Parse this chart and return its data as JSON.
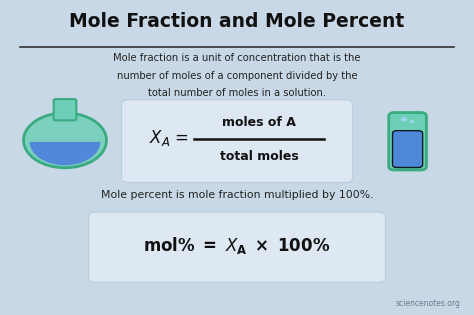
{
  "title": "Mole Fraction and Mole Percent",
  "subtitle_line1": "Mole fraction is a unit of concentration that is the",
  "subtitle_line2": "number of moles of a component divided by the",
  "subtitle_line3": "total number of moles in a solution.",
  "formula1_numerator": "moles of A",
  "formula1_denominator": "total moles",
  "desc2": "Mole percent is mole fraction multiplied by 100%.",
  "watermark": "sciencenotes.org",
  "bg_color": "#c8d8e6",
  "box_color": "#dde8f2",
  "box_edge_color": "#bbccdd",
  "title_color": "#111111",
  "text_color": "#222222",
  "formula_color": "#111111",
  "line_color": "#333333"
}
